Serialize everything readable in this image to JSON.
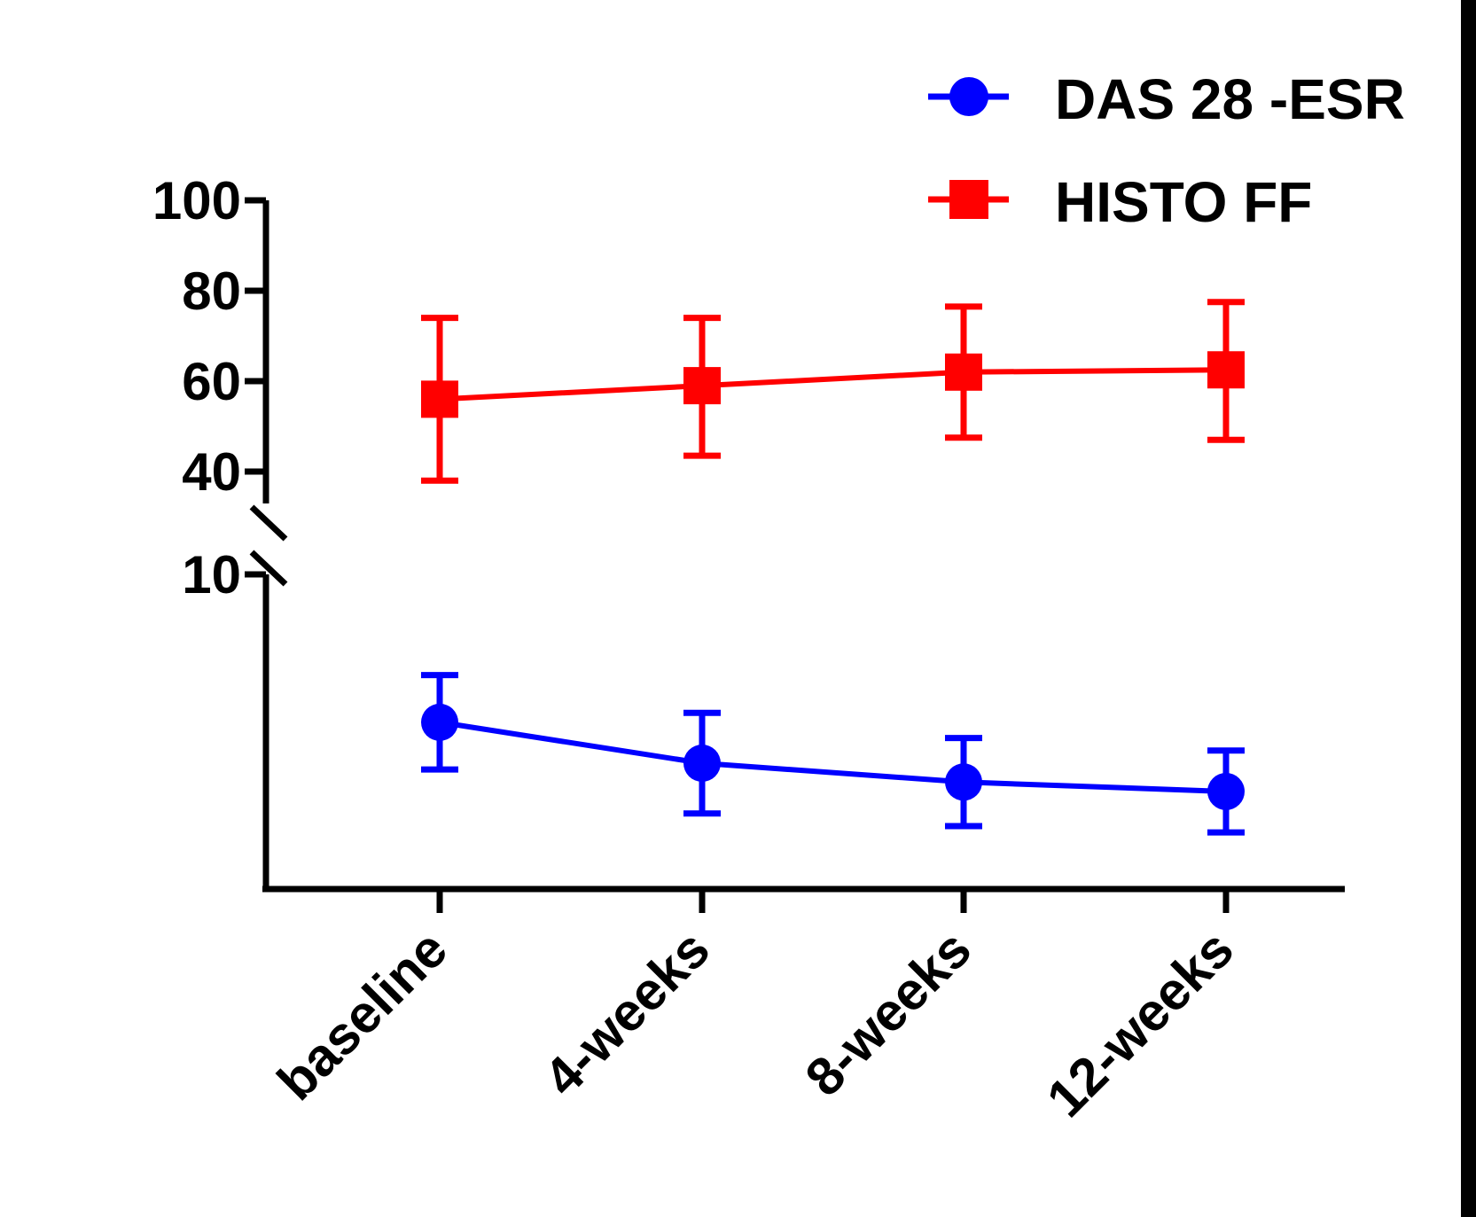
{
  "chart_data": {
    "type": "line",
    "categories": [
      "baseline",
      "4-weeks",
      "8-weeks",
      "12-weeks"
    ],
    "y_axis": {
      "broken": true,
      "lower_segment": {
        "range": [
          0,
          10
        ],
        "ticks": [
          "10"
        ]
      },
      "upper_segment": {
        "range": [
          35,
          100
        ],
        "ticks": [
          "40",
          "60",
          "80",
          "100"
        ]
      }
    },
    "series": [
      {
        "name": "DAS 28 -ESR",
        "color": "#0000ff",
        "marker": "circle",
        "values": [
          5.3,
          4.0,
          3.4,
          3.1
        ],
        "error_upper": [
          6.8,
          5.6,
          4.8,
          4.4
        ],
        "error_lower": [
          3.8,
          2.4,
          2.0,
          1.8
        ]
      },
      {
        "name": "HISTO FF",
        "color": "#ff0000",
        "marker": "square",
        "values": [
          56,
          59,
          62,
          62.5
        ],
        "error_upper": [
          74,
          74,
          76.5,
          77.5
        ],
        "error_lower": [
          38,
          43.5,
          47.5,
          47
        ]
      }
    ],
    "legend_position": "top-right"
  }
}
